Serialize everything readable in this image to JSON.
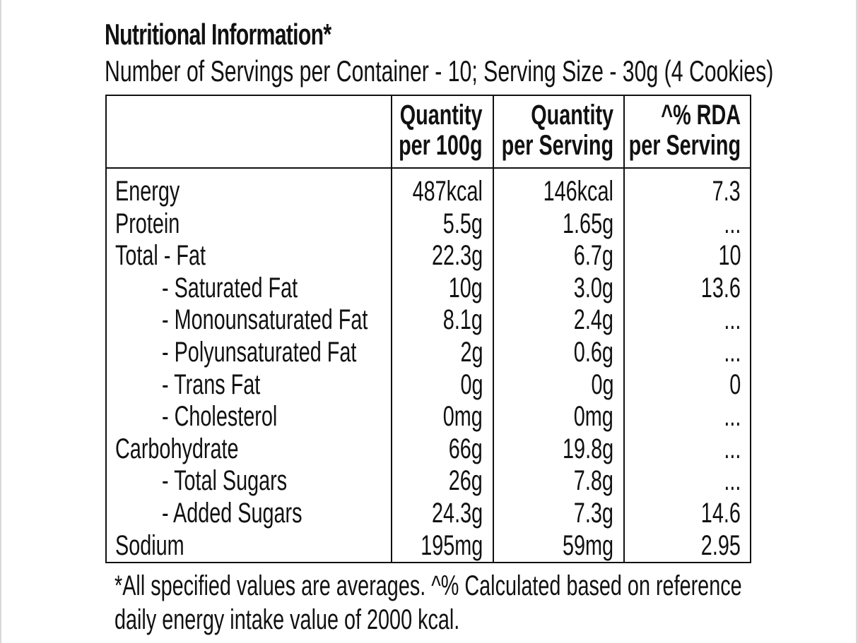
{
  "title": "Nutritional Information*",
  "subtitle": "Number of Servings per Container - 10; Serving Size - 30g  (4 Cookies)",
  "columns": [
    {
      "line1": "Quantity",
      "line2": "per 100g"
    },
    {
      "line1": "Quantity",
      "line2": "per Serving"
    },
    {
      "line1": "^% RDA",
      "line2": "per Serving"
    }
  ],
  "rows": [
    {
      "label": "Energy",
      "per100g": "487kcal",
      "perServing": "146kcal",
      "rda": "7.3"
    },
    {
      "label": "Protein",
      "per100g": "5.5g",
      "perServing": "1.65g",
      "rda": "..."
    },
    {
      "label": "Total - Fat",
      "per100g": "22.3g",
      "perServing": "6.7g",
      "rda": "10"
    },
    {
      "label": "- Saturated Fat",
      "per100g": "10g",
      "perServing": "3.0g",
      "rda": "13.6"
    },
    {
      "label": "- Monounsaturated Fat",
      "per100g": "8.1g",
      "perServing": "2.4g",
      "rda": "..."
    },
    {
      "label": "- Polyunsaturated Fat",
      "per100g": "2g",
      "perServing": "0.6g",
      "rda": "..."
    },
    {
      "label": "- Trans Fat",
      "per100g": "0g",
      "perServing": "0g",
      "rda": "0"
    },
    {
      "label": "- Cholesterol",
      "per100g": "0mg",
      "perServing": "0mg",
      "rda": "..."
    },
    {
      "label": "Carbohydrate",
      "per100g": "66g",
      "perServing": "19.8g",
      "rda": "..."
    },
    {
      "label": "- Total Sugars",
      "per100g": "26g",
      "perServing": "7.8g",
      "rda": "..."
    },
    {
      "label": "- Added Sugars",
      "per100g": "24.3g",
      "perServing": "7.3g",
      "rda": "14.6"
    },
    {
      "label": "Sodium",
      "per100g": "195mg",
      "perServing": "59mg",
      "rda": "2.95"
    }
  ],
  "footnote": {
    "line1": "*All specified values are averages. ^% Calculated based on reference",
    "line2": "daily energy intake value of 2000 kcal."
  }
}
